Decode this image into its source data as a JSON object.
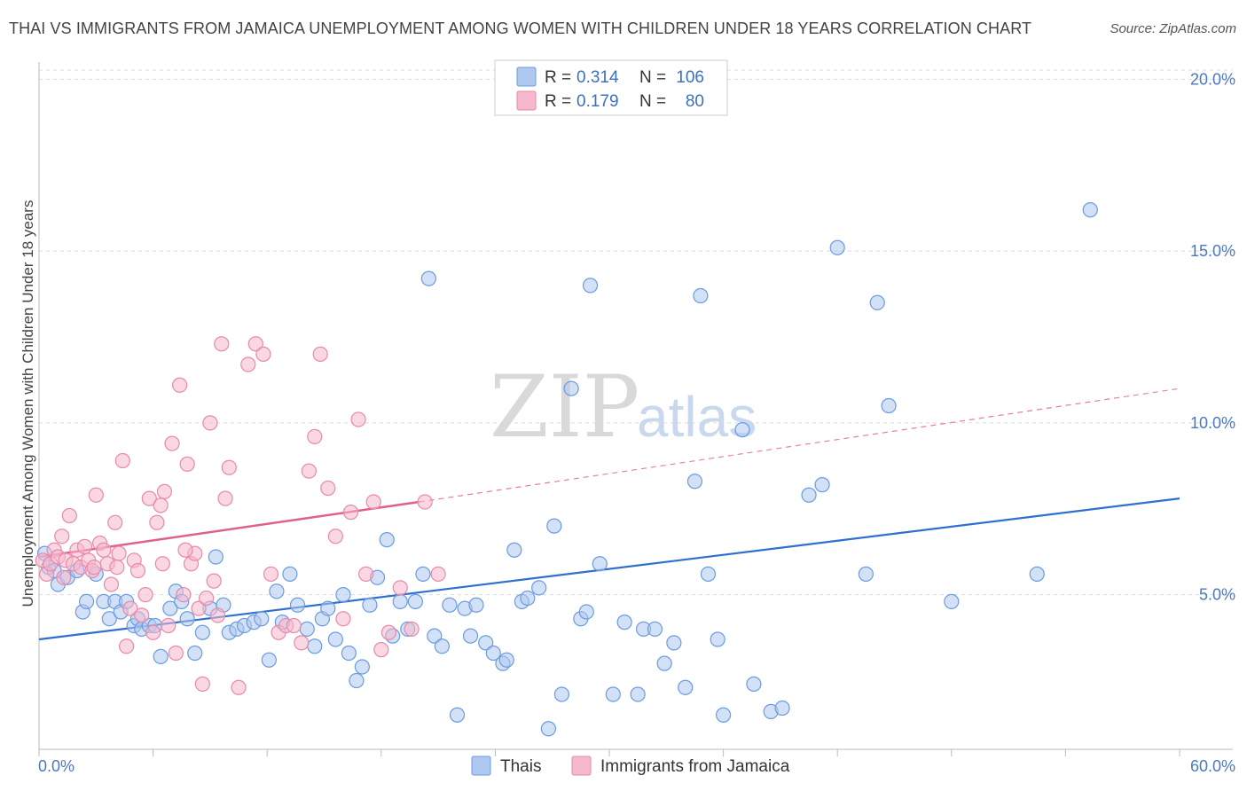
{
  "header": {
    "title": "THAI VS IMMIGRANTS FROM JAMAICA UNEMPLOYMENT AMONG WOMEN WITH CHILDREN UNDER 18 YEARS CORRELATION CHART",
    "source": "Source: ZipAtlas.com"
  },
  "watermark": {
    "zip": "ZIP",
    "atlas": "atlas"
  },
  "colors": {
    "thai_fill": "#aec8ef",
    "thai_stroke": "#6b9be0",
    "thai_line": "#2f6fcf",
    "jam_fill": "#f5b8cc",
    "jam_stroke": "#e889aa",
    "jam_line": "#e0608a",
    "grid": "#dcdcdc",
    "axis": "#bbbbbb"
  },
  "legend": {
    "rows": [
      {
        "r_label": "R =",
        "r_value": "0.314",
        "n_label": "N =",
        "n_value": "106"
      },
      {
        "r_label": "R =",
        "r_value": "0.179",
        "n_label": "N =",
        "n_value": "80"
      }
    ]
  },
  "chart_data": {
    "type": "scatter",
    "title": "THAI VS IMMIGRANTS FROM JAMAICA UNEMPLOYMENT AMONG WOMEN WITH CHILDREN UNDER 18 YEARS CORRELATION CHART",
    "xlabel": "",
    "ylabel": "Unemployment Among Women with Children Under 18 years",
    "xlim": [
      0,
      60
    ],
    "ylim": [
      0.5,
      20.5
    ],
    "x_tick_labels": [
      "0.0%",
      "60.0%"
    ],
    "y_ticks": [
      5,
      10,
      15,
      20
    ],
    "y_tick_labels": [
      "5.0%",
      "10.0%",
      "15.0%",
      "20.0%"
    ],
    "grid": "horizontal dashed",
    "legend_position": "top-center",
    "series": [
      {
        "name": "Thais",
        "r": 0.314,
        "n": 106,
        "trend": {
          "x": [
            0,
            60
          ],
          "y": [
            3.7,
            7.8
          ],
          "style": "solid"
        },
        "points": [
          [
            0.3,
            6.2
          ],
          [
            0.5,
            5.8
          ],
          [
            0.8,
            5.7
          ],
          [
            1.0,
            5.3
          ],
          [
            1.5,
            5.5
          ],
          [
            2.0,
            5.7
          ],
          [
            2.3,
            4.5
          ],
          [
            2.5,
            4.8
          ],
          [
            3.0,
            5.6
          ],
          [
            3.4,
            4.8
          ],
          [
            3.7,
            4.3
          ],
          [
            4.0,
            4.8
          ],
          [
            4.3,
            4.5
          ],
          [
            4.6,
            4.8
          ],
          [
            5.0,
            4.1
          ],
          [
            5.2,
            4.3
          ],
          [
            5.4,
            4.0
          ],
          [
            5.8,
            4.1
          ],
          [
            6.1,
            4.1
          ],
          [
            6.4,
            3.2
          ],
          [
            6.9,
            4.6
          ],
          [
            7.2,
            5.1
          ],
          [
            7.5,
            4.8
          ],
          [
            7.8,
            4.3
          ],
          [
            8.2,
            3.3
          ],
          [
            8.6,
            3.9
          ],
          [
            9.0,
            4.6
          ],
          [
            9.3,
            6.1
          ],
          [
            9.7,
            4.7
          ],
          [
            10.0,
            3.9
          ],
          [
            10.4,
            4.0
          ],
          [
            10.8,
            4.1
          ],
          [
            11.3,
            4.2
          ],
          [
            11.7,
            4.3
          ],
          [
            12.1,
            3.1
          ],
          [
            12.5,
            5.1
          ],
          [
            12.8,
            4.2
          ],
          [
            13.2,
            5.6
          ],
          [
            13.6,
            4.7
          ],
          [
            14.1,
            4.0
          ],
          [
            14.5,
            3.5
          ],
          [
            14.9,
            4.3
          ],
          [
            15.2,
            4.6
          ],
          [
            15.6,
            3.7
          ],
          [
            16.0,
            5.0
          ],
          [
            16.3,
            3.3
          ],
          [
            16.7,
            2.5
          ],
          [
            17.0,
            2.9
          ],
          [
            17.4,
            4.7
          ],
          [
            17.8,
            5.5
          ],
          [
            18.3,
            6.6
          ],
          [
            18.6,
            3.8
          ],
          [
            19.0,
            4.8
          ],
          [
            19.4,
            4.0
          ],
          [
            19.8,
            4.8
          ],
          [
            20.2,
            5.6
          ],
          [
            20.5,
            14.2
          ],
          [
            20.8,
            3.8
          ],
          [
            21.2,
            3.5
          ],
          [
            21.6,
            4.7
          ],
          [
            22.0,
            1.5
          ],
          [
            22.4,
            4.6
          ],
          [
            22.7,
            3.8
          ],
          [
            23.0,
            4.7
          ],
          [
            23.5,
            3.6
          ],
          [
            23.9,
            3.3
          ],
          [
            24.4,
            3.0
          ],
          [
            24.6,
            3.1
          ],
          [
            25.0,
            6.3
          ],
          [
            25.4,
            4.8
          ],
          [
            25.7,
            4.9
          ],
          [
            26.3,
            5.2
          ],
          [
            26.8,
            1.1
          ],
          [
            27.1,
            7.0
          ],
          [
            27.5,
            2.1
          ],
          [
            28.0,
            11.0
          ],
          [
            28.5,
            4.3
          ],
          [
            28.8,
            4.5
          ],
          [
            29.0,
            14.0
          ],
          [
            29.5,
            5.9
          ],
          [
            30.2,
            2.1
          ],
          [
            30.8,
            4.2
          ],
          [
            31.5,
            2.1
          ],
          [
            31.8,
            4.0
          ],
          [
            32.4,
            4.0
          ],
          [
            32.9,
            3.0
          ],
          [
            33.4,
            3.6
          ],
          [
            34.0,
            2.3
          ],
          [
            34.5,
            8.3
          ],
          [
            34.8,
            13.7
          ],
          [
            35.2,
            5.6
          ],
          [
            35.7,
            3.7
          ],
          [
            36.0,
            1.5
          ],
          [
            37.0,
            9.8
          ],
          [
            37.6,
            2.4
          ],
          [
            38.5,
            1.6
          ],
          [
            39.1,
            1.7
          ],
          [
            40.5,
            7.9
          ],
          [
            41.2,
            8.2
          ],
          [
            42.0,
            15.1
          ],
          [
            43.5,
            5.6
          ],
          [
            44.1,
            13.5
          ],
          [
            44.7,
            10.5
          ],
          [
            48.0,
            4.8
          ],
          [
            52.5,
            5.6
          ],
          [
            55.3,
            16.2
          ]
        ]
      },
      {
        "name": "Immigrants from Jamaica",
        "r": 0.179,
        "n": 80,
        "trend": {
          "x": [
            0,
            20
          ],
          "y": [
            6.1,
            7.7
          ],
          "style": "solid",
          "extended": {
            "x": [
              20,
              60
            ],
            "y": [
              7.7,
              11.0
            ],
            "style": "dashed"
          }
        },
        "points": [
          [
            0.2,
            6.0
          ],
          [
            0.4,
            5.6
          ],
          [
            0.6,
            5.9
          ],
          [
            0.8,
            6.3
          ],
          [
            1.0,
            6.1
          ],
          [
            1.2,
            6.7
          ],
          [
            1.3,
            5.5
          ],
          [
            1.4,
            6.0
          ],
          [
            1.6,
            7.3
          ],
          [
            1.8,
            5.9
          ],
          [
            2.0,
            6.3
          ],
          [
            2.2,
            5.8
          ],
          [
            2.4,
            6.4
          ],
          [
            2.6,
            6.0
          ],
          [
            2.8,
            5.7
          ],
          [
            3.0,
            7.9
          ],
          [
            3.2,
            6.5
          ],
          [
            3.4,
            6.3
          ],
          [
            3.6,
            5.9
          ],
          [
            3.8,
            5.3
          ],
          [
            4.0,
            7.1
          ],
          [
            4.2,
            6.2
          ],
          [
            4.4,
            8.9
          ],
          [
            4.6,
            3.5
          ],
          [
            4.8,
            4.6
          ],
          [
            5.0,
            6.0
          ],
          [
            5.2,
            5.7
          ],
          [
            5.4,
            4.4
          ],
          [
            5.6,
            5.0
          ],
          [
            5.8,
            7.8
          ],
          [
            6.0,
            3.9
          ],
          [
            6.2,
            7.1
          ],
          [
            6.4,
            7.6
          ],
          [
            6.6,
            8.0
          ],
          [
            6.8,
            4.1
          ],
          [
            7.0,
            9.4
          ],
          [
            7.2,
            3.3
          ],
          [
            7.4,
            11.1
          ],
          [
            7.6,
            5.0
          ],
          [
            7.8,
            8.8
          ],
          [
            8.0,
            5.9
          ],
          [
            8.2,
            6.2
          ],
          [
            8.4,
            4.6
          ],
          [
            8.6,
            2.4
          ],
          [
            8.8,
            4.9
          ],
          [
            9.0,
            10.0
          ],
          [
            9.2,
            5.4
          ],
          [
            9.4,
            4.4
          ],
          [
            9.6,
            12.3
          ],
          [
            9.8,
            7.8
          ],
          [
            10.0,
            8.7
          ],
          [
            10.5,
            2.3
          ],
          [
            11.0,
            11.7
          ],
          [
            11.4,
            12.3
          ],
          [
            11.8,
            12.0
          ],
          [
            12.2,
            5.6
          ],
          [
            12.6,
            3.9
          ],
          [
            13.0,
            4.1
          ],
          [
            13.4,
            4.1
          ],
          [
            13.8,
            3.6
          ],
          [
            14.2,
            8.6
          ],
          [
            14.5,
            9.6
          ],
          [
            14.8,
            12.0
          ],
          [
            15.2,
            8.1
          ],
          [
            15.6,
            6.7
          ],
          [
            16.0,
            4.3
          ],
          [
            16.4,
            7.4
          ],
          [
            16.8,
            10.1
          ],
          [
            17.2,
            5.6
          ],
          [
            17.6,
            7.7
          ],
          [
            18.0,
            3.4
          ],
          [
            18.4,
            3.9
          ],
          [
            19.0,
            5.2
          ],
          [
            19.6,
            4.0
          ],
          [
            20.3,
            7.7
          ],
          [
            21.0,
            5.6
          ],
          [
            2.9,
            5.8
          ],
          [
            4.1,
            5.8
          ],
          [
            6.5,
            5.9
          ],
          [
            7.7,
            6.3
          ]
        ]
      }
    ]
  },
  "bottom_legend": [
    {
      "label": "Thais"
    },
    {
      "label": "Immigrants from Jamaica"
    }
  ],
  "axis": {
    "x_min_label": "0.0%",
    "x_max_label": "60.0%",
    "y_label": "Unemployment Among Women with Children Under 18 years"
  }
}
